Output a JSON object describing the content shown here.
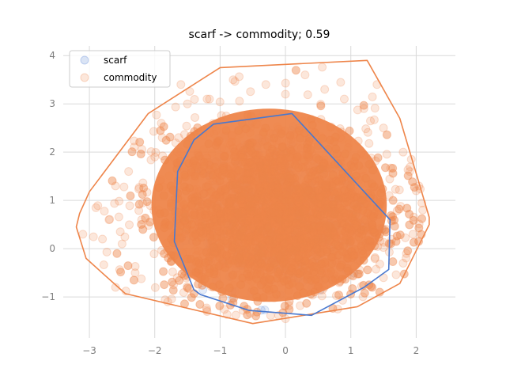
{
  "chart_data": {
    "type": "scatter",
    "title": "scarf -> commodity; 0.59",
    "xlabel": "",
    "ylabel": "",
    "xlim": [
      -3.4,
      2.6
    ],
    "ylim": [
      -1.85,
      4.2
    ],
    "grid": true,
    "legend_position": "top-left",
    "x_ticks": [
      -3,
      -2,
      -1,
      0,
      1,
      2
    ],
    "y_ticks": [
      -1,
      0,
      1,
      2,
      3,
      4
    ],
    "x_tick_labels": [
      "−3",
      "−2",
      "−1",
      "0",
      "1",
      "2"
    ],
    "y_tick_labels": [
      "−1",
      "0",
      "1",
      "2",
      "3",
      "4"
    ],
    "series": [
      {
        "name": "scarf",
        "color": "#4878cf",
        "hull": [
          [
            0.1,
            2.8
          ],
          [
            1.6,
            0.6
          ],
          [
            1.58,
            -0.43
          ],
          [
            1.2,
            -0.8
          ],
          [
            0.4,
            -1.38
          ],
          [
            -0.55,
            -1.28
          ],
          [
            -1.3,
            -0.95
          ],
          [
            -1.4,
            -0.85
          ],
          [
            -1.7,
            0.15
          ],
          [
            -1.65,
            1.6
          ],
          [
            -1.4,
            2.25
          ],
          [
            -1.1,
            2.58
          ]
        ]
      },
      {
        "name": "commodity",
        "color": "#ee854a",
        "hull": [
          [
            1.25,
            3.9
          ],
          [
            1.75,
            2.7
          ],
          [
            2.2,
            0.65
          ],
          [
            2.2,
            0.5
          ],
          [
            1.75,
            -0.72
          ],
          [
            1.1,
            -1.2
          ],
          [
            -0.5,
            -1.55
          ],
          [
            -2.45,
            -0.93
          ],
          [
            -3.05,
            -0.2
          ],
          [
            -3.2,
            0.45
          ],
          [
            -3.15,
            0.73
          ],
          [
            -3.0,
            1.18
          ],
          [
            -2.1,
            2.8
          ],
          [
            -1.0,
            3.75
          ]
        ],
        "core_ellipse": {
          "cx": -0.25,
          "cy": 0.9,
          "rx": 1.8,
          "ry": 2.0
        },
        "outliers": [
          [
            -2.6,
            1.3
          ],
          [
            -2.9,
            0.85
          ],
          [
            -2.5,
            0.1
          ],
          [
            -2.2,
            0.6
          ],
          [
            -2.0,
            1.9
          ],
          [
            -1.9,
            2.6
          ],
          [
            -1.5,
            3.0
          ],
          [
            -1.2,
            3.1
          ],
          [
            -0.8,
            3.5
          ],
          [
            -0.3,
            3.4
          ],
          [
            0.3,
            3.6
          ],
          [
            0.6,
            3.3
          ],
          [
            0.9,
            3.1
          ],
          [
            1.2,
            2.9
          ],
          [
            1.5,
            2.5
          ],
          [
            1.8,
            2.0
          ],
          [
            1.9,
            1.6
          ],
          [
            2.0,
            1.2
          ],
          [
            2.1,
            0.8
          ],
          [
            1.95,
            0.3
          ],
          [
            1.8,
            -0.3
          ],
          [
            1.5,
            -0.6
          ],
          [
            -2.3,
            -0.5
          ],
          [
            -2.6,
            -0.8
          ],
          [
            -2.8,
            0.2
          ],
          [
            -2.7,
            0.6
          ],
          [
            -1.8,
            -1.1
          ],
          [
            -1.2,
            -1.3
          ],
          [
            0.0,
            -1.45
          ],
          [
            0.8,
            -1.25
          ],
          [
            -3.1,
            0.3
          ],
          [
            -2.4,
            1.6
          ],
          [
            -1.6,
            3.4
          ],
          [
            0.0,
            3.2
          ],
          [
            1.4,
            3.4
          ]
        ]
      }
    ]
  }
}
